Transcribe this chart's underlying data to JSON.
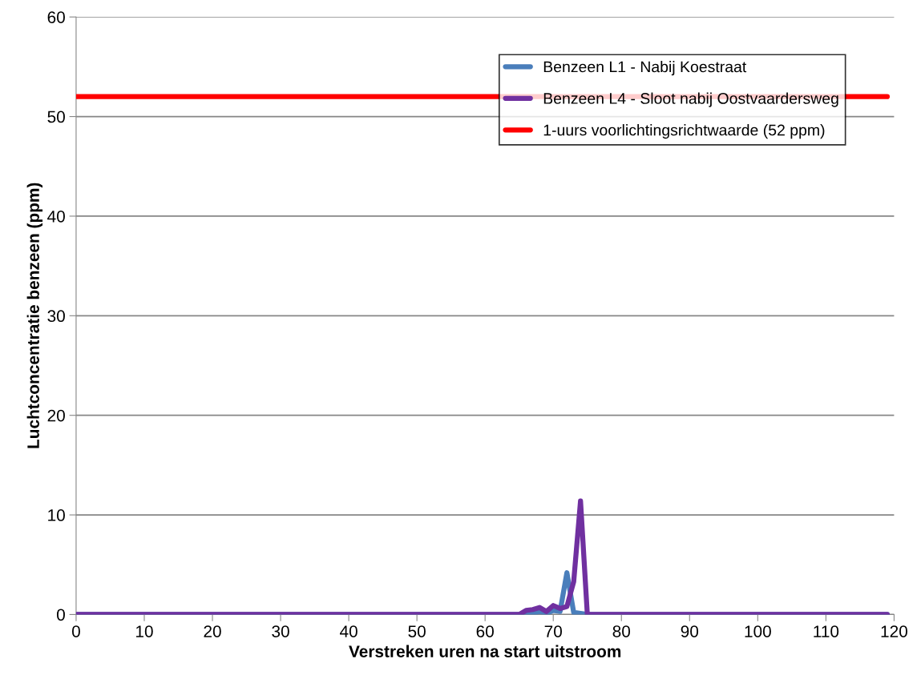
{
  "chart_data": {
    "type": "line",
    "xlabel": "Verstreken uren na start uitstroom",
    "ylabel": "Luchtconcentratie benzeen (ppm)",
    "xlim": [
      0,
      120
    ],
    "xticks": [
      0,
      10,
      20,
      30,
      40,
      50,
      60,
      70,
      80,
      90,
      100,
      110,
      120
    ],
    "ylim": [
      0,
      60
    ],
    "yticks": [
      0,
      10,
      20,
      30,
      40,
      50,
      60
    ],
    "grid": "y",
    "legend": "top right",
    "marker": "none",
    "line_style": "solid",
    "series": [
      {
        "name": "Benzeen L1 - Nabij Koestraat",
        "color": "#4a7ebb",
        "x": [
          0,
          65,
          66,
          67,
          68,
          69,
          70,
          71,
          72,
          73,
          74,
          75,
          119
        ],
        "values": [
          0,
          0,
          0,
          0.1,
          0.3,
          0.1,
          0.4,
          0.3,
          4.2,
          0.2,
          0.1,
          0,
          0
        ]
      },
      {
        "name": "Benzeen L4 - Sloot nabij Oostvaardersweg",
        "color": "#7030a0",
        "x": [
          0,
          65,
          66,
          67,
          68,
          69,
          70,
          71,
          72,
          73,
          74,
          75,
          119
        ],
        "values": [
          0,
          0,
          0.4,
          0.5,
          0.7,
          0.3,
          0.9,
          0.6,
          0.8,
          3.3,
          11.4,
          0,
          0
        ]
      },
      {
        "name": "1-uurs voorlichtingsrichtwaarde (52 ppm)",
        "color": "#ff0000",
        "x": [
          0,
          119
        ],
        "values": [
          52,
          52
        ]
      }
    ]
  }
}
